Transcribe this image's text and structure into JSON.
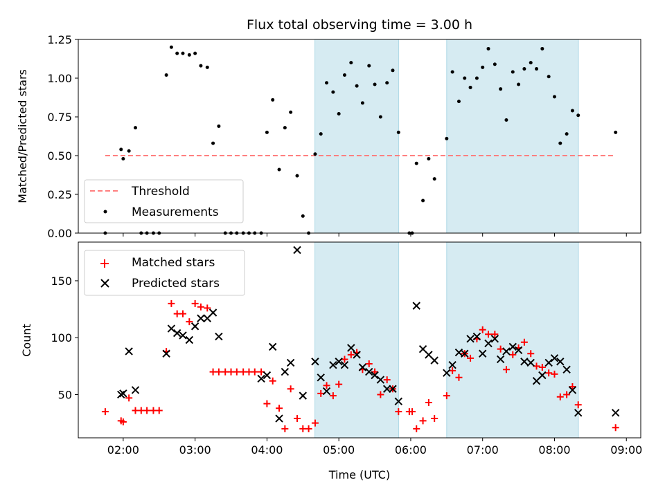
{
  "figure": {
    "title": "Flux total observing time = 3.00 h"
  },
  "colors": {
    "shade": "#add8e6",
    "threshold": "#ff7f7f",
    "matched": "#ff0000",
    "predicted": "#000000",
    "measurement": "#000000"
  },
  "chart_data": [
    {
      "type": "scatter",
      "panel": "top",
      "title": "Flux total observing time = 3.00 h",
      "xlabel": "",
      "ylabel": "Matched/Predicted stars",
      "ylim": [
        0,
        1.25
      ],
      "yticks": [
        0.0,
        0.25,
        0.5,
        0.75,
        1.0,
        1.25
      ],
      "ytick_labels": [
        "0.00",
        "0.25",
        "0.50",
        "0.75",
        "1.00",
        "1.25"
      ],
      "xlim": [
        1.375,
        9.2
      ],
      "xticks": [
        2,
        3,
        4,
        5,
        6,
        7,
        8,
        9
      ],
      "xtick_labels": [
        "02:00",
        "03:00",
        "04:00",
        "05:00",
        "06:00",
        "07:00",
        "08:00",
        "09:00"
      ],
      "shaded_intervals": [
        [
          4.667,
          5.833
        ],
        [
          6.5,
          8.333
        ]
      ],
      "threshold": {
        "name": "Threshold",
        "y": 0.5,
        "x_range": [
          1.75,
          8.85
        ]
      },
      "legend": {
        "position": "lower-left",
        "entries": [
          "Threshold",
          "Measurements"
        ]
      },
      "series": [
        {
          "name": "Measurements",
          "x": [
            1.75,
            1.97,
            2.0,
            2.08,
            2.17,
            2.25,
            2.33,
            2.42,
            2.5,
            2.6,
            2.67,
            2.75,
            2.83,
            2.92,
            3.0,
            3.08,
            3.17,
            3.25,
            3.33,
            3.42,
            3.5,
            3.58,
            3.67,
            3.75,
            3.83,
            3.92,
            4.0,
            4.08,
            4.17,
            4.25,
            4.33,
            4.42,
            4.5,
            4.58,
            4.67,
            4.75,
            4.83,
            4.92,
            5.0,
            5.08,
            5.17,
            5.25,
            5.33,
            5.42,
            5.5,
            5.58,
            5.67,
            5.75,
            5.83,
            5.98,
            6.02,
            6.08,
            6.17,
            6.25,
            6.33,
            6.5,
            6.58,
            6.67,
            6.75,
            6.83,
            6.92,
            7.0,
            7.08,
            7.17,
            7.25,
            7.33,
            7.42,
            7.5,
            7.58,
            7.67,
            7.75,
            7.83,
            7.92,
            8.0,
            8.08,
            8.17,
            8.25,
            8.33,
            8.85
          ],
          "y": [
            0.0,
            0.54,
            0.48,
            0.53,
            0.68,
            0.0,
            0.0,
            0.0,
            0.0,
            1.02,
            1.2,
            1.16,
            1.16,
            1.15,
            1.16,
            1.08,
            1.07,
            0.58,
            0.69,
            0.0,
            0.0,
            0.0,
            0.0,
            0.0,
            0.0,
            0.0,
            0.65,
            0.86,
            0.41,
            0.68,
            0.78,
            0.37,
            0.11,
            0.0,
            0.51,
            0.64,
            0.97,
            0.91,
            0.77,
            1.02,
            1.1,
            0.95,
            0.84,
            1.08,
            0.96,
            0.75,
            0.97,
            1.05,
            0.65,
            0.0,
            0.0,
            0.45,
            0.21,
            0.48,
            0.35,
            0.61,
            1.04,
            0.85,
            1.0,
            0.94,
            1.0,
            1.07,
            1.19,
            1.09,
            0.93,
            0.73,
            1.04,
            0.96,
            1.06,
            1.1,
            1.06,
            1.19,
            1.01,
            0.88,
            0.58,
            0.64,
            0.79,
            0.76,
            0.65
          ]
        }
      ]
    },
    {
      "type": "scatter",
      "panel": "bottom",
      "xlabel": "Time (UTC)",
      "ylabel": "Count",
      "ylim": [
        12,
        184
      ],
      "yticks": [
        50,
        100,
        150
      ],
      "ytick_labels": [
        "50",
        "100",
        "150"
      ],
      "xlim": [
        1.375,
        9.2
      ],
      "xticks": [
        2,
        3,
        4,
        5,
        6,
        7,
        8,
        9
      ],
      "xtick_labels": [
        "02:00",
        "03:00",
        "04:00",
        "05:00",
        "06:00",
        "07:00",
        "08:00",
        "09:00"
      ],
      "shaded_intervals": [
        [
          4.667,
          5.833
        ],
        [
          6.5,
          8.333
        ]
      ],
      "legend": {
        "position": "top-left",
        "entries": [
          "Matched stars",
          "Predicted stars"
        ]
      },
      "series": [
        {
          "name": "Matched stars",
          "marker": "+",
          "x": [
            1.75,
            1.97,
            2.0,
            2.08,
            2.17,
            2.25,
            2.33,
            2.42,
            2.5,
            2.6,
            2.67,
            2.75,
            2.83,
            2.92,
            3.0,
            3.08,
            3.17,
            3.25,
            3.33,
            3.42,
            3.5,
            3.58,
            3.67,
            3.75,
            3.83,
            3.92,
            4.0,
            4.08,
            4.17,
            4.25,
            4.33,
            4.42,
            4.5,
            4.58,
            4.67,
            4.75,
            4.83,
            4.92,
            5.0,
            5.08,
            5.17,
            5.25,
            5.33,
            5.42,
            5.5,
            5.58,
            5.67,
            5.75,
            5.83,
            5.98,
            6.02,
            6.08,
            6.17,
            6.25,
            6.33,
            6.5,
            6.58,
            6.67,
            6.75,
            6.83,
            6.92,
            7.0,
            7.08,
            7.17,
            7.25,
            7.33,
            7.42,
            7.5,
            7.58,
            7.67,
            7.75,
            7.83,
            7.92,
            8.0,
            8.08,
            8.17,
            8.25,
            8.33,
            8.85
          ],
          "y": [
            35,
            27,
            26,
            47,
            36,
            36,
            36,
            36,
            36,
            88,
            130,
            121,
            121,
            114,
            130,
            127,
            126,
            70,
            70,
            70,
            70,
            70,
            70,
            70,
            70,
            70,
            42,
            62,
            38,
            20,
            55,
            29,
            20,
            20,
            25,
            51,
            58,
            49,
            59,
            81,
            85,
            87,
            72,
            77,
            70,
            50,
            63,
            55,
            35,
            35,
            35,
            20,
            27,
            43,
            29,
            49,
            71,
            65,
            86,
            82,
            99,
            107,
            103,
            103,
            90,
            72,
            85,
            91,
            96,
            86,
            75,
            74,
            69,
            68,
            48,
            50,
            57,
            41,
            21
          ]
        },
        {
          "name": "Predicted stars",
          "marker": "x",
          "x": [
            1.97,
            2.0,
            2.08,
            2.17,
            2.6,
            2.67,
            2.75,
            2.83,
            2.92,
            3.0,
            3.08,
            3.17,
            3.25,
            3.33,
            3.92,
            4.0,
            4.08,
            4.17,
            4.25,
            4.33,
            4.42,
            4.5,
            4.67,
            4.75,
            4.83,
            4.92,
            5.0,
            5.08,
            5.17,
            5.25,
            5.33,
            5.42,
            5.5,
            5.58,
            5.67,
            5.75,
            5.83,
            6.08,
            6.17,
            6.25,
            6.33,
            6.5,
            6.58,
            6.67,
            6.75,
            6.83,
            6.92,
            7.0,
            7.08,
            7.17,
            7.25,
            7.33,
            7.42,
            7.5,
            7.58,
            7.67,
            7.75,
            7.83,
            7.92,
            8.0,
            8.08,
            8.17,
            8.25,
            8.33,
            8.85
          ],
          "y": [
            50,
            51,
            88,
            54,
            86,
            108,
            104,
            102,
            98,
            110,
            117,
            117,
            122,
            101,
            64,
            67,
            92,
            29,
            70,
            78,
            177,
            49,
            79,
            65,
            53,
            76,
            79,
            76,
            91,
            85,
            74,
            70,
            67,
            63,
            55,
            55,
            44,
            128,
            90,
            85,
            80,
            69,
            76,
            87,
            86,
            99,
            101,
            86,
            95,
            99,
            81,
            88,
            92,
            89,
            79,
            78,
            62,
            67,
            78,
            82,
            79,
            72,
            54,
            34,
            34
          ]
        }
      ]
    }
  ]
}
